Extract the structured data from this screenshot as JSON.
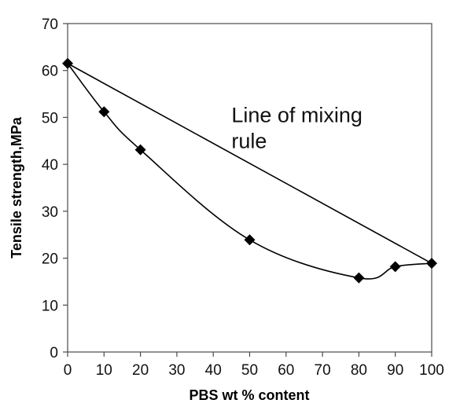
{
  "chart_data": {
    "type": "line",
    "xlabel": "PBS wt % content",
    "ylabel": "Tensile strength,MPa",
    "xlim": [
      0,
      100
    ],
    "ylim": [
      0,
      70
    ],
    "x_ticks": [
      0,
      10,
      20,
      30,
      40,
      50,
      60,
      70,
      80,
      90,
      100
    ],
    "y_ticks": [
      0,
      10,
      20,
      30,
      40,
      50,
      60,
      70
    ],
    "grid": false,
    "legend": "none",
    "annotation": {
      "text_lines": [
        "Line of mixing",
        "rule"
      ],
      "at": [
        45,
        49
      ]
    },
    "series": [
      {
        "marker": "diamond",
        "smooth": true,
        "color": "#000000",
        "x": [
          0,
          10,
          20,
          50,
          80,
          90,
          100
        ],
        "y": [
          61.5,
          51.2,
          43.1,
          23.9,
          15.8,
          18.2,
          18.9
        ]
      },
      {
        "marker": "none",
        "smooth": false,
        "color": "#000000",
        "x": [
          0,
          100
        ],
        "y": [
          61.5,
          18.9
        ]
      }
    ]
  }
}
